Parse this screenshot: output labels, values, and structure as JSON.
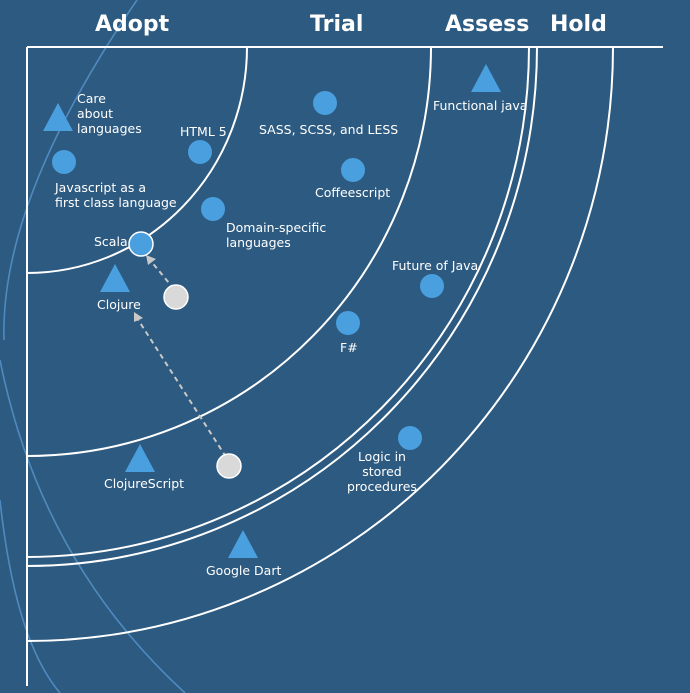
{
  "rings": [
    "Adopt",
    "Trial",
    "Assess",
    "Hold"
  ],
  "blips": [
    {
      "id": "care-about-languages",
      "label_lines": [
        "Care",
        "about",
        "languages"
      ],
      "shape": "triangle"
    },
    {
      "id": "javascript-first-class",
      "label_lines": [
        "Javascript as a",
        "first class language"
      ],
      "shape": "circle"
    },
    {
      "id": "html5",
      "label_lines": [
        "HTML 5"
      ],
      "shape": "circle"
    },
    {
      "id": "scala",
      "label_lines": [
        "Scala"
      ],
      "shape": "circle"
    },
    {
      "id": "clojure",
      "label_lines": [
        "Clojure"
      ],
      "shape": "triangle"
    },
    {
      "id": "sass-scss-less",
      "label_lines": [
        "SASS, SCSS, and LESS"
      ],
      "shape": "circle"
    },
    {
      "id": "coffeescript",
      "label_lines": [
        "Coffeescript"
      ],
      "shape": "circle"
    },
    {
      "id": "domain-specific-languages",
      "label_lines": [
        "Domain-specific",
        "languages"
      ],
      "shape": "circle"
    },
    {
      "id": "future-of-java",
      "label_lines": [
        "Future of Java"
      ],
      "shape": "circle"
    },
    {
      "id": "f-sharp",
      "label_lines": [
        "F#"
      ],
      "shape": "circle"
    },
    {
      "id": "functional-java",
      "label_lines": [
        "Functional java"
      ],
      "shape": "triangle"
    },
    {
      "id": "logic-in-stored-procedures",
      "label_lines": [
        "Logic in",
        "stored",
        "procedures"
      ],
      "shape": "circle"
    },
    {
      "id": "clojurescript",
      "label_lines": [
        "ClojureScript"
      ],
      "shape": "triangle"
    },
    {
      "id": "google-dart",
      "label_lines": [
        "Google Dart"
      ],
      "shape": "triangle"
    }
  ],
  "colors": {
    "background": "#2d5a80",
    "lines": "#ffffff",
    "blip": "#4a9fdf",
    "previous_position": "#d9d9d9",
    "arrow": "#c8c8c8",
    "arc_decor": "#5b9bd5"
  }
}
